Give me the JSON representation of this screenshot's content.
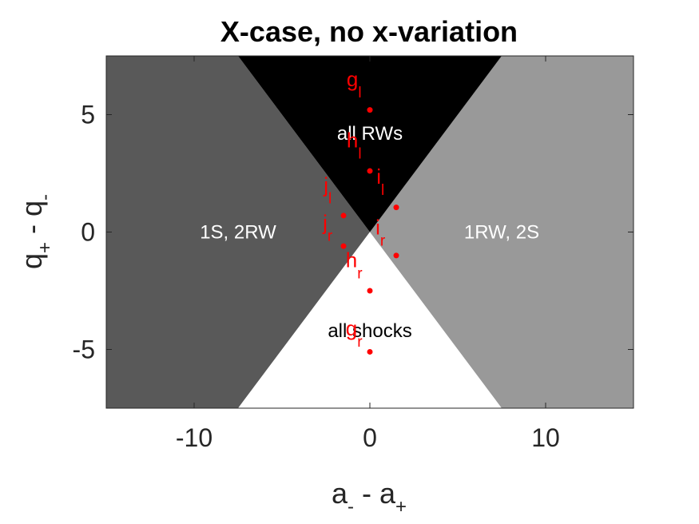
{
  "chart_data": {
    "type": "scatter",
    "title": "X-case, no x-variation",
    "xlabel": {
      "main": "a",
      "sub1": "-",
      "mid": " - a",
      "sub2": "+"
    },
    "ylabel": {
      "main": "q",
      "sub1": "+",
      "mid": " - q",
      "sub2": "-"
    },
    "xlim": [
      -15,
      15
    ],
    "ylim": [
      -7.5,
      7.5
    ],
    "xticks": [
      -10,
      0,
      10
    ],
    "yticks": [
      -5,
      0,
      5
    ],
    "xtick_labels": [
      "-10",
      "0",
      "10"
    ],
    "ytick_labels": [
      "-5",
      "0",
      "5"
    ],
    "grid": false,
    "regions": [
      {
        "label": "1S, 2RW",
        "fill": "#595959",
        "text_color": "#ffffff",
        "polygon": [
          [
            -15,
            7.5
          ],
          [
            -7.5,
            7.5
          ],
          [
            0,
            0
          ],
          [
            -7.5,
            -7.5
          ],
          [
            -15,
            -7.5
          ]
        ],
        "label_pos": [
          -7.5,
          0
        ]
      },
      {
        "label": "1RW, 2S",
        "fill": "#999999",
        "text_color": "#ffffff",
        "polygon": [
          [
            15,
            7.5
          ],
          [
            7.5,
            7.5
          ],
          [
            0,
            0
          ],
          [
            7.5,
            -7.5
          ],
          [
            15,
            -7.5
          ]
        ],
        "label_pos": [
          7.5,
          0
        ]
      },
      {
        "label": "all RWs",
        "fill": "#000000",
        "text_color": "#ffffff",
        "polygon": [
          [
            -7.5,
            7.5
          ],
          [
            7.5,
            7.5
          ],
          [
            0,
            0
          ]
        ],
        "label_pos": [
          0,
          4.2
        ]
      },
      {
        "label": "all shocks",
        "fill": "#ffffff",
        "text_color": "#000000",
        "polygon": [
          [
            -7.5,
            -7.5
          ],
          [
            7.5,
            -7.5
          ],
          [
            0,
            0
          ]
        ],
        "label_pos": [
          0,
          -4.2
        ]
      }
    ],
    "point_color": "#ff0000",
    "points": [
      {
        "name": "g",
        "sub": "l",
        "x": 0,
        "y": 5.2,
        "label_offset": [
          -0.9,
          1.0
        ]
      },
      {
        "name": "h",
        "sub": "l",
        "x": 0,
        "y": 2.6,
        "label_offset": [
          -0.9,
          1.0
        ]
      },
      {
        "name": "i",
        "sub": "l",
        "x": 1.5,
        "y": 1.05,
        "label_offset": [
          -0.9,
          1.0
        ]
      },
      {
        "name": "j",
        "sub": "l",
        "x": -1.5,
        "y": 0.7,
        "label_offset": [
          -0.9,
          1.0
        ]
      },
      {
        "name": "j",
        "sub": "r",
        "x": -1.5,
        "y": -0.6,
        "label_offset": [
          -0.9,
          0.7
        ]
      },
      {
        "name": "i",
        "sub": "r",
        "x": 1.5,
        "y": -1.0,
        "label_offset": [
          -0.9,
          0.9
        ]
      },
      {
        "name": "h",
        "sub": "r",
        "x": 0,
        "y": -2.5,
        "label_offset": [
          -0.9,
          1.0
        ]
      },
      {
        "name": "g",
        "sub": "r",
        "x": 0,
        "y": -5.1,
        "label_offset": [
          -0.9,
          0.7
        ]
      }
    ]
  }
}
